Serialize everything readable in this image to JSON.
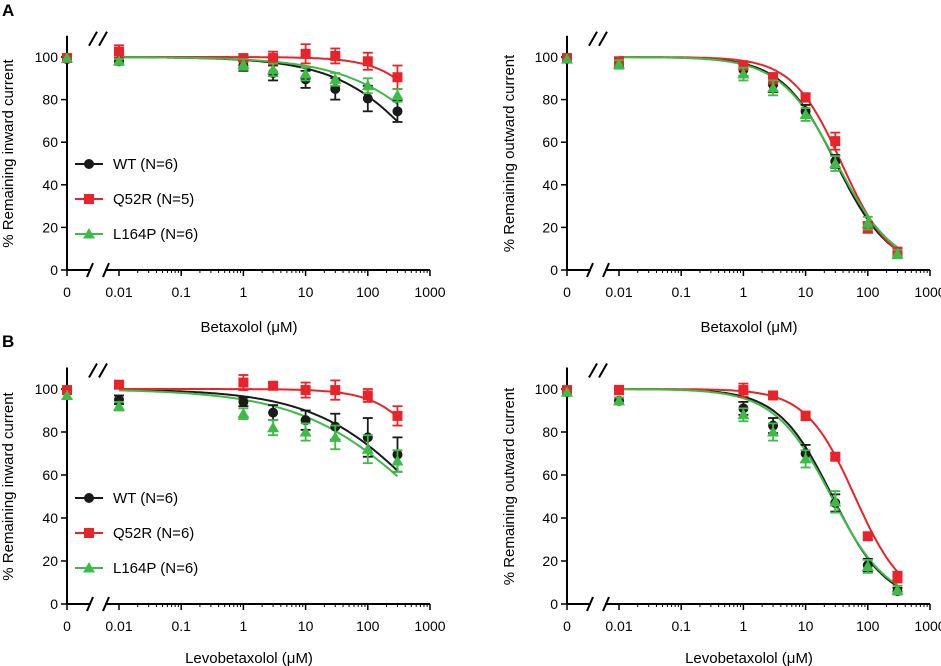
{
  "figure": {
    "panel_labels": [
      "A",
      "B"
    ],
    "groups": [
      {
        "name": "WT",
        "color": "#1a1a1a",
        "marker": "circle"
      },
      {
        "name": "Q52R",
        "color": "#e8232a",
        "marker": "square"
      },
      {
        "name": "L164P",
        "color": "#3dbb47",
        "marker": "triangle"
      }
    ],
    "x_tick_labels": [
      "0",
      "0.01",
      "0.1",
      "1",
      "10",
      "100",
      "1000"
    ],
    "y_tick_labels": [
      "0",
      "20",
      "40",
      "60",
      "80",
      "100"
    ]
  },
  "chart_data": [
    {
      "id": "A-left",
      "panel": "A",
      "type": "scatter",
      "title": "",
      "xlabel": "Betaxolol (μM)",
      "ylabel": "% Remaining inward current",
      "xscale": "log with broken axis at 0",
      "ylim": [
        0,
        110
      ],
      "legend": [
        "WT (N=6)",
        "Q52R (N=5)",
        "L164P (N=6)"
      ],
      "legend_position": "left-center",
      "series": [
        {
          "name": "WT (N=6)",
          "color": "#1a1a1a",
          "x": [
            0,
            0.01,
            1,
            3,
            10,
            30,
            100,
            300
          ],
          "y": [
            99,
            98,
            96,
            92.5,
            89.5,
            85,
            80.5,
            74.5
          ],
          "err": [
            0,
            1.5,
            2.5,
            3.5,
            4,
            5,
            6,
            5
          ],
          "fit": {
            "ic50": 1200,
            "hill": 0.6
          }
        },
        {
          "name": "Q52R (N=5)",
          "color": "#e8232a",
          "x": [
            0,
            0.01,
            1,
            3,
            10,
            30,
            100,
            300
          ],
          "y": [
            99.5,
            102.5,
            99.5,
            99.5,
            101.5,
            100.5,
            98,
            90.5
          ],
          "err": [
            0,
            3,
            1.5,
            3,
            4.5,
            3.5,
            4,
            5.5
          ],
          "fit": {
            "ic50": 2500,
            "hill": 1.0
          }
        },
        {
          "name": "L164P (N=6)",
          "color": "#3dbb47",
          "x": [
            0,
            0.01,
            1,
            3,
            10,
            30,
            100,
            300
          ],
          "y": [
            99.5,
            98,
            96.5,
            94,
            92,
            89.5,
            86.5,
            82
          ],
          "err": [
            0,
            1,
            2.5,
            3,
            3,
            3,
            3.5,
            3
          ],
          "fit": {
            "ic50": 3000,
            "hill": 0.55
          }
        }
      ]
    },
    {
      "id": "A-right",
      "panel": "A",
      "type": "scatter",
      "title": "",
      "xlabel": "Betaxolol (μM)",
      "ylabel": "% Remaining outward current",
      "xscale": "log with broken axis at 0",
      "ylim": [
        0,
        110
      ],
      "legend": [],
      "series": [
        {
          "name": "WT",
          "color": "#1a1a1a",
          "x": [
            0,
            0.01,
            1,
            3,
            10,
            30,
            100,
            300
          ],
          "y": [
            99,
            97.5,
            94,
            87,
            74.5,
            51,
            20,
            8
          ],
          "err": [
            0,
            2,
            3,
            3.5,
            3,
            3,
            2.5,
            2
          ],
          "fit": {
            "ic50": 31,
            "hill": 1.0
          }
        },
        {
          "name": "Q52R",
          "color": "#e8232a",
          "x": [
            0,
            0.01,
            1,
            3,
            10,
            30,
            100,
            300
          ],
          "y": [
            99.5,
            98,
            96,
            90,
            81,
            60.5,
            20,
            8.5
          ],
          "err": [
            0,
            1.5,
            2,
            2.5,
            2,
            4,
            2.5,
            2
          ],
          "fit": {
            "ic50": 38,
            "hill": 1.1
          }
        },
        {
          "name": "L164P",
          "color": "#3dbb47",
          "x": [
            0,
            0.01,
            1,
            3,
            10,
            30,
            100,
            300
          ],
          "y": [
            99,
            96.5,
            92,
            85.5,
            73,
            50,
            22,
            7.5
          ],
          "err": [
            0,
            2,
            3,
            3.5,
            3,
            3.5,
            3,
            2
          ],
          "fit": {
            "ic50": 32,
            "hill": 0.95
          }
        }
      ]
    },
    {
      "id": "B-left",
      "panel": "B",
      "type": "scatter",
      "title": "",
      "xlabel": "Levobetaxolol (μM)",
      "ylabel": "% Remaining inward current",
      "xscale": "log with broken axis at 0",
      "ylim": [
        0,
        110
      ],
      "legend": [
        "WT (N=6)",
        "Q52R (N=6)",
        "L164P (N=6)"
      ],
      "legend_position": "left-center",
      "series": [
        {
          "name": "WT (N=6)",
          "color": "#1a1a1a",
          "x": [
            0,
            0.01,
            1,
            3,
            10,
            30,
            100,
            300
          ],
          "y": [
            99,
            95,
            94,
            89,
            85.5,
            82.5,
            77.5,
            69.5
          ],
          "err": [
            0,
            2,
            2,
            3.5,
            4.5,
            6,
            9,
            8
          ],
          "fit": {
            "ic50": 800,
            "hill": 0.5
          }
        },
        {
          "name": "Q52R (N=6)",
          "color": "#e8232a",
          "x": [
            0,
            0.01,
            1,
            3,
            10,
            30,
            100,
            300
          ],
          "y": [
            99.5,
            102,
            103,
            101.5,
            99.5,
            99.5,
            97,
            87.5
          ],
          "err": [
            0,
            1.5,
            3.5,
            1.5,
            3.5,
            4.5,
            3,
            4.5
          ],
          "fit": {
            "ic50": 2000,
            "hill": 1.0
          }
        },
        {
          "name": "L164P (N=6)",
          "color": "#3dbb47",
          "x": [
            0,
            0.01,
            1,
            3,
            10,
            30,
            100,
            300
          ],
          "y": [
            97,
            92,
            88.5,
            82,
            80,
            77.5,
            72,
            66.5
          ],
          "err": [
            0,
            2,
            2.5,
            3.5,
            4,
            5.5,
            6.5,
            5
          ],
          "fit": {
            "ic50": 700,
            "hill": 0.45
          }
        }
      ]
    },
    {
      "id": "B-right",
      "panel": "B",
      "type": "scatter",
      "title": "",
      "xlabel": "Levobetaxolol (μM)",
      "ylabel": "% Remaining outward current",
      "xscale": "log with broken axis at 0",
      "ylim": [
        0,
        110
      ],
      "legend": [],
      "series": [
        {
          "name": "WT",
          "color": "#1a1a1a",
          "x": [
            0,
            0.01,
            1,
            3,
            10,
            30,
            100,
            300
          ],
          "y": [
            98.5,
            94.5,
            91,
            83,
            70,
            47,
            18,
            6
          ],
          "err": [
            0,
            1.5,
            3,
            3.5,
            4,
            4,
            3,
            1.5
          ],
          "fit": {
            "ic50": 27,
            "hill": 1.0
          }
        },
        {
          "name": "Q52R",
          "color": "#e8232a",
          "x": [
            0,
            0.01,
            1,
            3,
            10,
            30,
            100,
            300
          ],
          "y": [
            99.5,
            99.5,
            99.5,
            97,
            87.5,
            68.5,
            31.5,
            12.5
          ],
          "err": [
            0,
            2,
            3,
            1.5,
            2,
            1.5,
            1.5,
            2.5
          ],
          "fit": {
            "ic50": 62,
            "hill": 1.1
          }
        },
        {
          "name": "L164P",
          "color": "#3dbb47",
          "x": [
            0,
            0.01,
            1,
            3,
            10,
            30,
            100,
            300
          ],
          "y": [
            98.5,
            94.5,
            88,
            80,
            67.5,
            47.5,
            17.5,
            6.5
          ],
          "err": [
            0,
            1.5,
            3,
            4,
            4,
            5,
            3,
            2
          ],
          "fit": {
            "ic50": 26,
            "hill": 0.95
          }
        }
      ]
    }
  ]
}
